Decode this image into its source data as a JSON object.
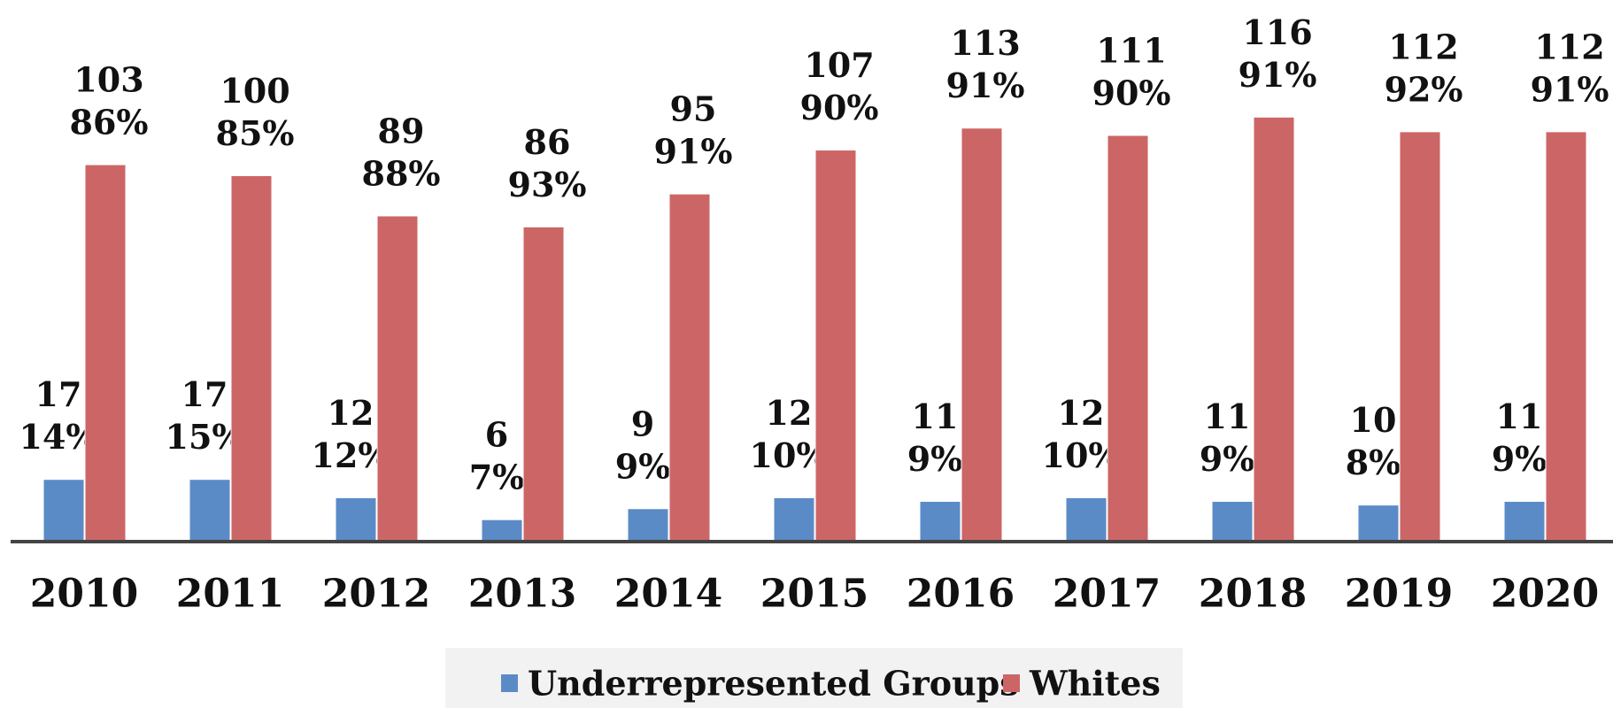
{
  "chart_data": {
    "type": "bar",
    "categories": [
      "2010",
      "2011",
      "2012",
      "2013",
      "2014",
      "2015",
      "2016",
      "2017",
      "2018",
      "2019",
      "2020"
    ],
    "series": [
      {
        "name": "Underrepresented Groups",
        "color": "#5b8bc7",
        "values": [
          17,
          17,
          12,
          6,
          9,
          12,
          11,
          12,
          11,
          10,
          11
        ],
        "percent_labels": [
          "14%",
          "15%",
          "12%",
          "7%",
          "9%",
          "10%",
          "9%",
          "10%",
          "9%",
          "8%",
          "9%"
        ]
      },
      {
        "name": "Whites",
        "color": "#cc6666",
        "values": [
          103,
          100,
          89,
          86,
          95,
          107,
          113,
          111,
          116,
          112,
          112
        ],
        "percent_labels": [
          "86%",
          "85%",
          "88%",
          "93%",
          "91%",
          "90%",
          "91%",
          "90%",
          "91%",
          "92%",
          "91%"
        ]
      }
    ],
    "ylim": [
      0,
      148
    ],
    "legend": "bottom"
  }
}
